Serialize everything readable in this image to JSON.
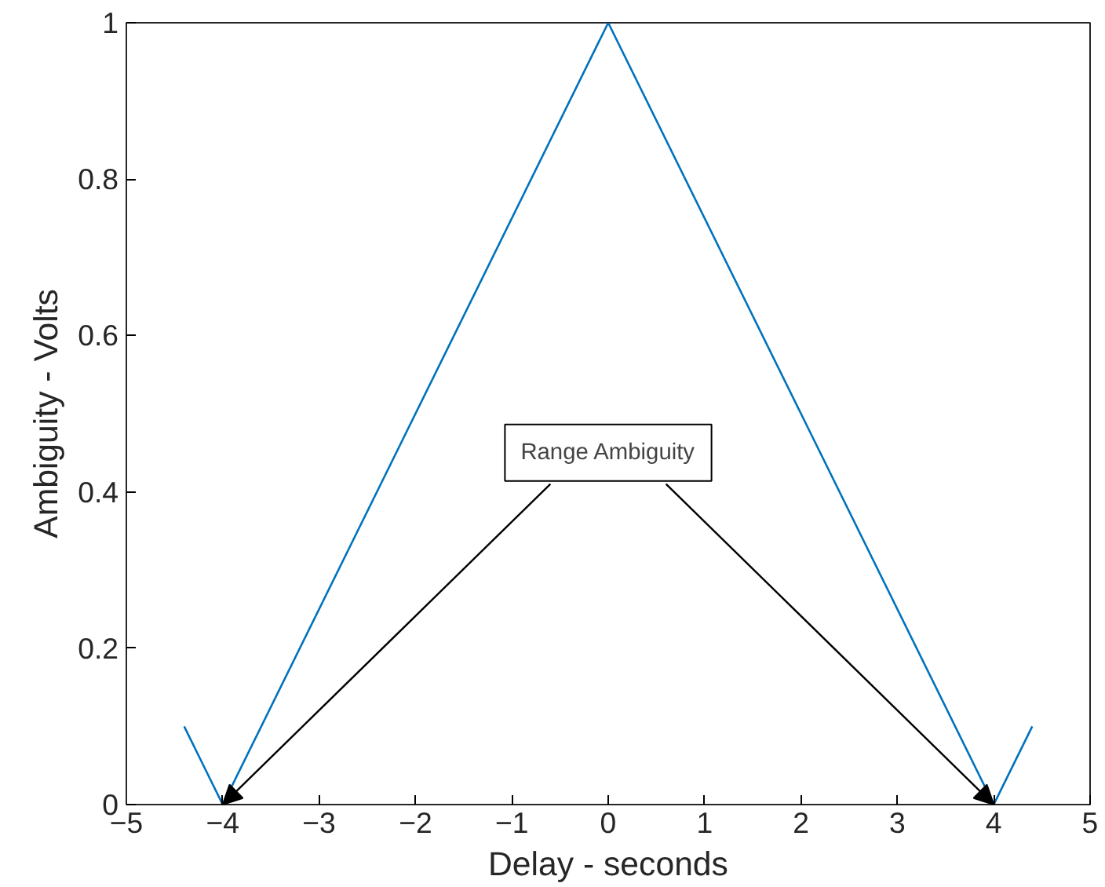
{
  "chart_data": {
    "type": "line",
    "xlabel": "Delay - seconds",
    "ylabel": "Ambiguity - Volts",
    "x": [
      -4.4,
      -4,
      0,
      4,
      4.4
    ],
    "series": [
      {
        "color": "#0072bd",
        "values": [
          0.1,
          0,
          1,
          0,
          0.1
        ]
      }
    ],
    "xlim": [
      -5,
      5
    ],
    "ylim": [
      0,
      1
    ],
    "xticks": [
      -5,
      -4,
      -3,
      -2,
      -1,
      0,
      1,
      2,
      3,
      4,
      5
    ],
    "yticks": [
      0,
      0.2,
      0.4,
      0.6,
      0.8,
      1
    ],
    "annotations": [
      "Range Ambiguity"
    ],
    "grid": false,
    "marker": "none",
    "line_style": "solid"
  }
}
